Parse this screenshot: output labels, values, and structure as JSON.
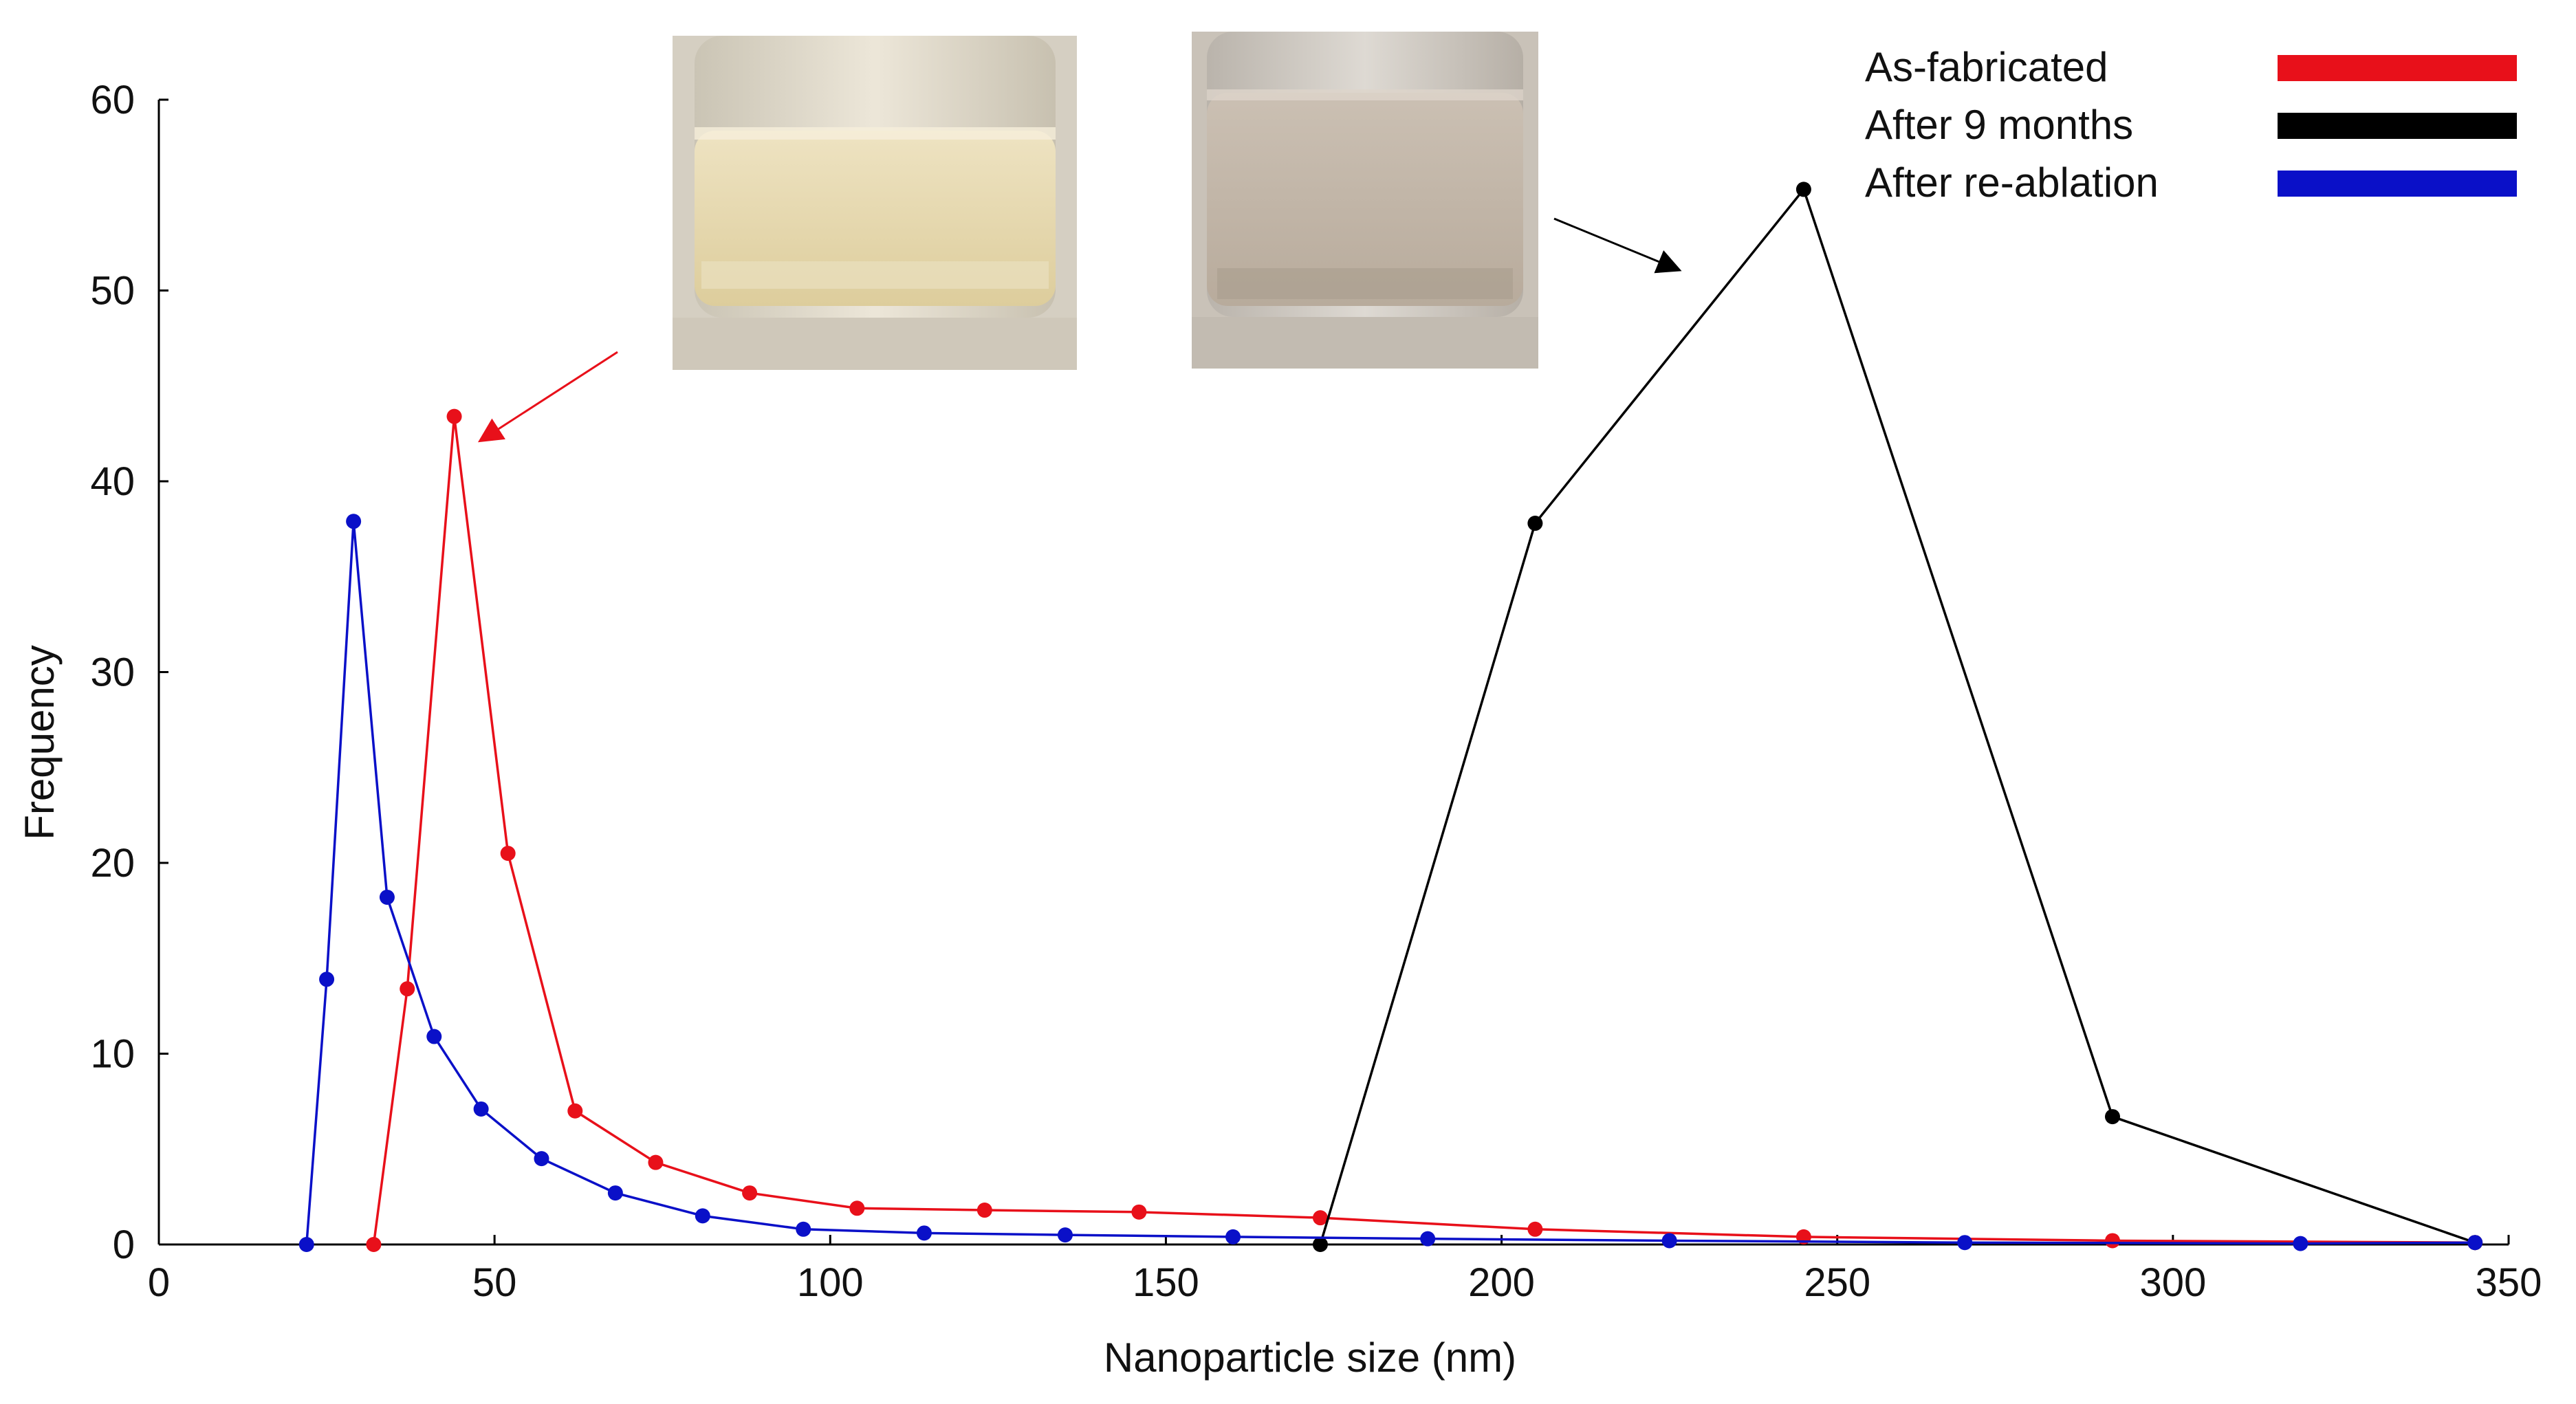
{
  "chart_data": {
    "type": "line",
    "xlabel": "Nanoparticle size (nm)",
    "ylabel": "Frequency",
    "xlim": [
      0,
      350
    ],
    "ylim": [
      0,
      60
    ],
    "xticks": [
      0,
      50,
      100,
      150,
      200,
      250,
      300,
      350
    ],
    "yticks": [
      0,
      10,
      20,
      30,
      40,
      50,
      60
    ],
    "grid": false,
    "legend_position": "top-right",
    "series": [
      {
        "name": "As-fabricated",
        "color": "#e8101a",
        "points": [
          [
            32,
            0
          ],
          [
            37,
            13.4
          ],
          [
            44,
            43.4
          ],
          [
            52,
            20.5
          ],
          [
            62,
            7.0
          ],
          [
            74,
            4.3
          ],
          [
            88,
            2.7
          ],
          [
            104,
            1.9
          ],
          [
            123,
            1.8
          ],
          [
            146,
            1.7
          ],
          [
            173,
            1.4
          ],
          [
            205,
            0.8
          ],
          [
            245,
            0.4
          ],
          [
            291,
            0.2
          ],
          [
            345,
            0.1
          ]
        ]
      },
      {
        "name": "After 9 months",
        "color": "#000000",
        "points": [
          [
            173,
            0
          ],
          [
            205,
            37.8
          ],
          [
            245,
            55.3
          ],
          [
            291,
            6.7
          ],
          [
            345,
            0.1
          ]
        ]
      },
      {
        "name": "After re-ablation",
        "color": "#0a10c8",
        "points": [
          [
            22,
            0
          ],
          [
            25,
            13.9
          ],
          [
            29,
            37.9
          ],
          [
            34,
            18.2
          ],
          [
            41,
            10.9
          ],
          [
            48,
            7.1
          ],
          [
            57,
            4.5
          ],
          [
            68,
            2.7
          ],
          [
            81,
            1.5
          ],
          [
            96,
            0.8
          ],
          [
            114,
            0.6
          ],
          [
            135,
            0.5
          ],
          [
            160,
            0.4
          ],
          [
            189,
            0.3
          ],
          [
            225,
            0.2
          ],
          [
            269,
            0.1
          ],
          [
            319,
            0.05
          ],
          [
            345,
            0.1
          ]
        ]
      }
    ]
  },
  "insets": [
    {
      "name": "fresh-vial-photo",
      "description_color_liquid": "#e4d6ae"
    },
    {
      "name": "aged-vial-photo",
      "description_color_liquid": "#c2b6a8"
    }
  ]
}
